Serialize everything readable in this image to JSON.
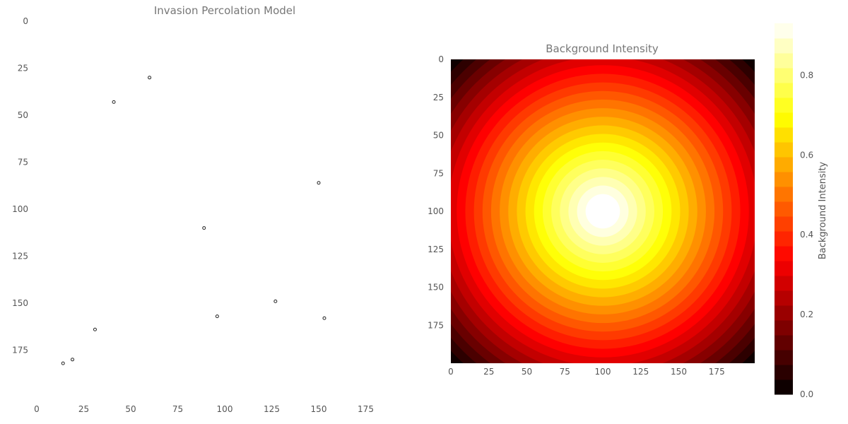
{
  "chart_data": [
    {
      "type": "scatter",
      "title": "Invasion Percolation Model",
      "xlim": [
        0,
        200
      ],
      "ylim": [
        200,
        0
      ],
      "y_inverted": true,
      "xticks": [
        0,
        25,
        50,
        75,
        100,
        125,
        150,
        175
      ],
      "yticks": [
        0,
        25,
        50,
        75,
        100,
        125,
        150,
        175
      ],
      "xtick_labels": [
        "0",
        "25",
        "50",
        "75",
        "100",
        "125",
        "150",
        "175"
      ],
      "ytick_labels": [
        "0",
        "25",
        "50",
        "75",
        "100",
        "125",
        "150",
        "175"
      ],
      "grid": false,
      "points": [
        {
          "x": 60,
          "y": 30
        },
        {
          "x": 41,
          "y": 43
        },
        {
          "x": 150,
          "y": 86
        },
        {
          "x": 89,
          "y": 110
        },
        {
          "x": 127,
          "y": 149
        },
        {
          "x": 96,
          "y": 157
        },
        {
          "x": 153,
          "y": 158
        },
        {
          "x": 31,
          "y": 164
        },
        {
          "x": 19,
          "y": 180
        },
        {
          "x": 14,
          "y": 182
        }
      ]
    },
    {
      "type": "heatmap",
      "title": "Background Intensity",
      "colormap": "hot",
      "xlim": [
        0,
        200
      ],
      "ylim": [
        200,
        0
      ],
      "center": [
        100,
        100
      ],
      "levels": 25,
      "value_min": 0.0,
      "value_max": 1.0,
      "function": "1 - r/141.4 (radial falloff from center)",
      "xticks": [
        0,
        25,
        50,
        75,
        100,
        125,
        150,
        175
      ],
      "yticks": [
        0,
        25,
        50,
        75,
        100,
        125,
        150,
        175
      ],
      "xtick_labels": [
        "0",
        "25",
        "50",
        "75",
        "100",
        "125",
        "150",
        "175"
      ],
      "ytick_labels": [
        "0",
        "25",
        "50",
        "75",
        "100",
        "125",
        "150",
        "175"
      ],
      "colorbar": {
        "label": "Background Intensity",
        "range": [
          0.0,
          0.93
        ],
        "ticks": [
          0.0,
          0.2,
          0.4,
          0.6,
          0.8
        ],
        "tick_labels": [
          "0.0",
          "0.2",
          "0.4",
          "0.6",
          "0.8"
        ]
      }
    }
  ]
}
